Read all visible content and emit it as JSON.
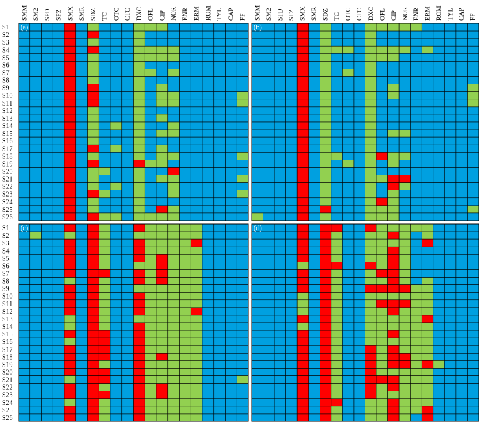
{
  "colors": {
    "blue": "#00A0E0",
    "green": "#92D050",
    "red": "#FF0000",
    "grid": "#000000",
    "background": "#FFFFFF"
  },
  "chart_data": {
    "type": "heatmap",
    "columns": [
      "SMM",
      "SM2",
      "SPD",
      "SFZ",
      "SMX",
      "SMR",
      "SDZ",
      "TC",
      "OTC",
      "CTC",
      "DXC",
      "OFL",
      "CIP",
      "NOR",
      "ENR",
      "ERM",
      "ROM",
      "TYL",
      "CAP",
      "FF"
    ],
    "rows": [
      "S1",
      "S2",
      "S3",
      "S4",
      "S5",
      "S6",
      "S7",
      "S8",
      "S9",
      "S10",
      "S11",
      "S12",
      "S13",
      "S14",
      "S15",
      "S16",
      "S17",
      "S18",
      "S19",
      "S20",
      "S21",
      "S22",
      "S23",
      "S24",
      "S25",
      "S26"
    ],
    "legend_codes": {
      "B": "blue",
      "G": "green",
      "R": "red"
    },
    "panels": [
      {
        "label": "(a)",
        "grid": [
          "BBBBRBGBBBGGGBBBBBBB",
          "BBBBRBRBBBGBBBBBBBBB",
          "BBBBRBGBBBGBBBBBBBBB",
          "BBBBRBRBBBGGGGBBBBBB",
          "BBBBRBGBBBGGGGBBBBBB",
          "BBBBRBGBBBGBBBBBBBBB",
          "BBBBRBGBBBGGBGBBBBBB",
          "BBBBRBGBBBGBBBBBBBBB",
          "BBBBRBRBBBGBGBBBBBBB",
          "BBBBRBRBBBGBGGBBBBBG",
          "BBBBRBRBBBGBGGBBBBBG",
          "BBBBRBGBBBGBBBBBBBBB",
          "BBBBRBGBBBGBGBBBBBBB",
          "BBBBRBGBGBGBBGBBBBBB",
          "BBBBRBGBBBGBGGBBBBBB",
          "BBBBRBGBBBGBBBBBBBBB",
          "BBBBRBRBGBGBGBBBBBBB",
          "BBBBRBGBBBGBGGBBBBBG",
          "BBBBRBRBBBRGGBBBBBBB",
          "BBBBRBGGBBGBBRBBBBBB",
          "BBBBRBGBBBGBGGBBBBBG",
          "BBBBRBGBGBGBBGBBBBBB",
          "BBBBRBRGBBGBBGBBBBBG",
          "BBBBRBGBBBGBBBBBBBBB",
          "BBBBRBGBBBGBRGBBBBBB",
          "BBBBRBRGGBGGGGBBBBBB"
        ]
      },
      {
        "label": "(b)",
        "grid": [
          "BBBBRBGBBBGGGGGBBBBB",
          "BBBBRBGBBBGBBBBBBBBB",
          "BBBBRBGBBBGBBBBBBBBB",
          "BBBBRBGGGBGGGGBGBBBB",
          "BBBBRBGBBBGGGBBBBBBB",
          "BBBBRBGBBBGBBBBBBBBB",
          "BBBBRBGBGBGBBBBBBBBB",
          "BBBBRBGBBBGBBBBBBBBB",
          "BBBBRBGBBBGBGBBBBBBG",
          "BBBBRBGBBBGBGBBBBBBG",
          "BBBBRBGBBBGBBBBBBBBG",
          "BBBBRBGBBBGBBBBBBBBB",
          "BBBBRBGBBBGBBBBBBBBB",
          "BBBBRBGBBBGBBBBBBBBB",
          "BBBBRBGBBBGBGGBBBBBB",
          "BBBBRBGBBBGBBBBBBBBB",
          "BBBBRBGBBBGBBBBBBBBB",
          "BBBBRBGGBBGRGGBBBBBB",
          "BBBBRBGBGBGBGBBBBBBB",
          "BBBBRBGBBBGBBBBBBBBB",
          "BBBBRBGBBBGGRRBBBBBB",
          "BBBBRBGBBBGBRGBBBBBB",
          "BBBBRBGBBBGBGBBBBBBB",
          "BBBBRBGBBBGRGBBBBBBB",
          "BBBBRBRBBBGGGBBBBBBG",
          "GBBBRBGBBBGGGBBBBBBB"
        ]
      },
      {
        "label": "(c)",
        "grid": [
          "BBBBRBRGBBRGGGGGBBBB",
          "BGBBGBRGBBGGGGGGBBBB",
          "BBBBRBRGBBRGGGGRBBBB",
          "BBBBRBRGBBRGGGGGBBBB",
          "BBBBRBRGBBRGRGGGBBBB",
          "BBBBRBRGBBGGRGGGBBBB",
          "BBBBRBRRBBRGRGGGBBBB",
          "BBBBGBRGBBRGRGGGBBBB",
          "BBBBRBRGBBGGGGGGBBBB",
          "BBBBRBRGBBRGGGGGBBBB",
          "BBBBRBRGBBRGGGGGBBBB",
          "BBBBRBRGBBRGGGGRBBBB",
          "BBBBGBRGBBGGGGGGBBBB",
          "BBBBGBRGBBRGGGGGBBBB",
          "BBBBRBRRBBRGGGGGBBBB",
          "BBBBGBRRBBRGGGGGBBBB",
          "BBBBRBRRBBRGGGGGBBBB",
          "BBBBRBRRBBRGRGGGBBBB",
          "BBBBRBRGBBRGGGGGBBBB",
          "BBBBRBRRBBRGGGGGBBBB",
          "BBBBGBRRBBRGGGGGBBBG",
          "BBBBRBRGBBRGRGGGBBBB",
          "BBBBRBRRBBRGRGGGBBBB",
          "BBBBGBRGBBRGGGGGBBBB",
          "BBBBRBRGBBRGGGGGBBBB",
          "BBBBRBRGBBRGGGGGBBBB"
        ]
      },
      {
        "label": "(d)",
        "grid": [
          "BBBBRBRRBBRGGGGGBBBB",
          "BBBBRBRGBBGGRGBGBBBB",
          "BBBBRBRGBBGGGGBRBBBB",
          "BBBBRBRGBBGGRGBBBBBB",
          "BBBBRBRGBBGGRGBBBBBB",
          "BBBBGBRRBBRGRGBBBBBB",
          "BBBBRBRGBBGRRGBBBBBB",
          "BBBBRBRGBBGGRGBGBBBB",
          "BBBBRBRGBBRRRRGGBBBB",
          "BBBBGBRGBBGGGGGGBBBB",
          "BBBBGBRGBBGRRRGGBBBB",
          "BBBBGBRGBBGGRGGGBBBB",
          "BBBBRBRGBBGGGGGRBBBB",
          "BBBBGBRGBBGGGGGGBBBB",
          "BBBBRBRGBBGGRGGGBBBB",
          "BBBBRBRGBBGGGGGGBBBB",
          "BBBBRBRGBBRGRGGGBBBB",
          "BBBBRBRGBBRGRRGGBBBB",
          "BBBBRBRGBBRGRRGRGBBB",
          "BBBBRBRGBBRGGGGGBBBB",
          "BBBBRBRGBBRRRGGGBBBB",
          "BBBBRBRGBBRGRGGGBBBB",
          "BBBBRBRGBBRGGGGGBBBB",
          "BBBBRBRRBBGGRGGGBBBB",
          "BBBBRBRGBBGGRGGRBBBB",
          "BBBBRBRGBBGGRGBRBBBB"
        ]
      }
    ]
  }
}
